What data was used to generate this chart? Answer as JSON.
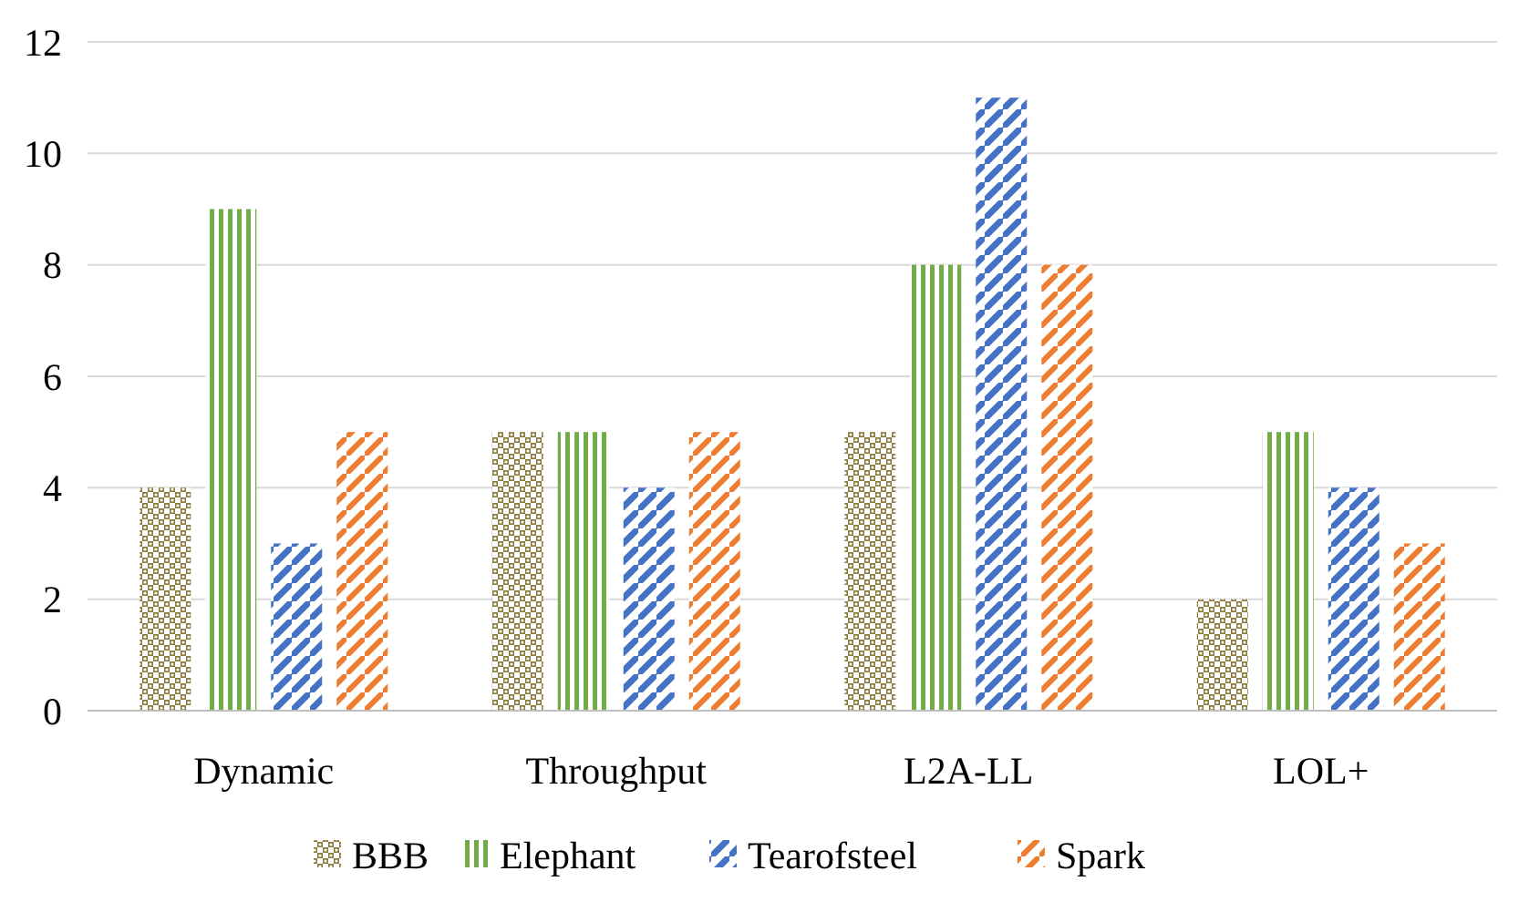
{
  "chart_data": {
    "type": "bar",
    "categories": [
      "Dynamic",
      "Throughput",
      "L2A-LL",
      "LOL+"
    ],
    "series": [
      {
        "name": "BBB",
        "color": "#8b7b3c",
        "values": [
          4,
          5,
          5,
          2
        ]
      },
      {
        "name": "Elephant",
        "color": "#70ad47",
        "values": [
          9,
          5,
          8,
          5
        ]
      },
      {
        "name": "Tearofsteel",
        "color": "#4472c4",
        "values": [
          3,
          4,
          11,
          4
        ]
      },
      {
        "name": "Spark",
        "color": "#ed7d31",
        "values": [
          5,
          5,
          8,
          3
        ]
      }
    ],
    "ylim": [
      0,
      12
    ],
    "yticks": [
      0,
      2,
      4,
      6,
      8,
      10,
      12
    ],
    "grid": "y",
    "legend": "bottom"
  }
}
